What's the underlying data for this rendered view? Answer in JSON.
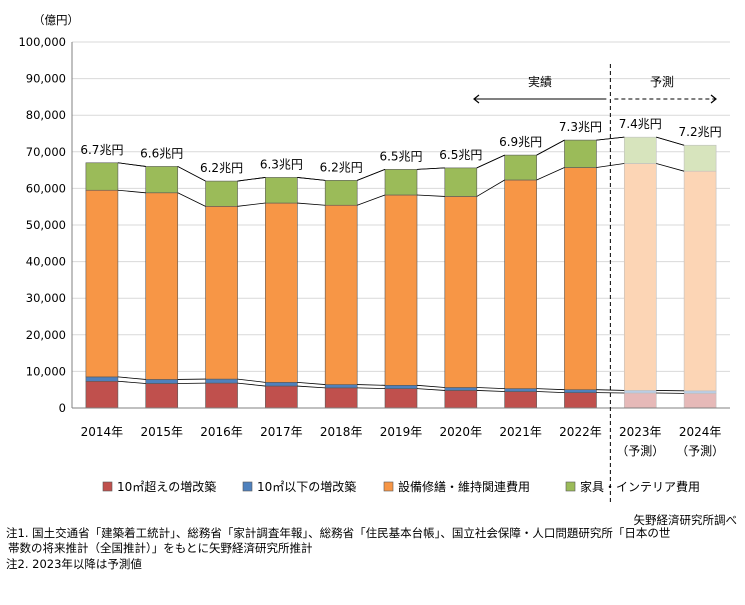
{
  "chart_data": {
    "type": "bar",
    "stacked": true,
    "unit_label": "（億円）",
    "ylim": [
      0,
      100000
    ],
    "y_ticks": [
      "0",
      "10,000",
      "20,000",
      "30,000",
      "40,000",
      "50,000",
      "60,000",
      "70,000",
      "80,000",
      "90,000",
      "100,000"
    ],
    "categories": [
      "2014年",
      "2015年",
      "2016年",
      "2017年",
      "2018年",
      "2019年",
      "2020年",
      "2021年",
      "2022年",
      "2023年",
      "2024年"
    ],
    "category_sublabels": [
      "",
      "",
      "",
      "",
      "",
      "",
      "",
      "",
      "",
      "（予測）",
      "（予測）"
    ],
    "forecast_from_index": 9,
    "totals_labels": [
      "6.7兆円",
      "6.6兆円",
      "6.2兆円",
      "6.3兆円",
      "6.2兆円",
      "6.5兆円",
      "6.5兆円",
      "6.9兆円",
      "7.3兆円",
      "7.4兆円",
      "7.2兆円"
    ],
    "series": [
      {
        "name": "10㎡超えの増改築",
        "color": "#c0504d",
        "forecast_color": "#e6b9b8",
        "values": [
          7300,
          6700,
          6800,
          6000,
          5500,
          5300,
          4800,
          4500,
          4200,
          4100,
          4000
        ]
      },
      {
        "name": "10㎡以下の増改築",
        "color": "#4f81bd",
        "forecast_color": "#b9cde5",
        "values": [
          1200,
          1100,
          1100,
          1000,
          900,
          900,
          800,
          800,
          800,
          700,
          700
        ]
      },
      {
        "name": "設備修繕・維持関連費用",
        "color": "#f79646",
        "forecast_color": "#fcd5b5",
        "values": [
          51000,
          51000,
          47200,
          49000,
          49000,
          52000,
          52200,
          57000,
          60700,
          62000,
          60000
        ]
      },
      {
        "name": "家具・インテリア費用",
        "color": "#9bbb59",
        "forecast_color": "#d7e4bd",
        "values": [
          7500,
          7200,
          6900,
          7000,
          6800,
          7000,
          7800,
          6800,
          7500,
          7200,
          7100
        ]
      }
    ],
    "annotations": {
      "actual": "実績",
      "forecast": "予測"
    }
  },
  "footer": {
    "source": "矢野経済研究所調べ",
    "note1_line1": "注1.  国土交通省「建築着工統計」、総務省「家計調査年報」、総務省「住民基本台帳」、国立社会保障・人口問題研究所「日本の世",
    "note1_line2": "帯数の将来推計（全国推計）」をもとに矢野経済研究所推計",
    "note2": "注2.  2023年以降は予測値"
  }
}
